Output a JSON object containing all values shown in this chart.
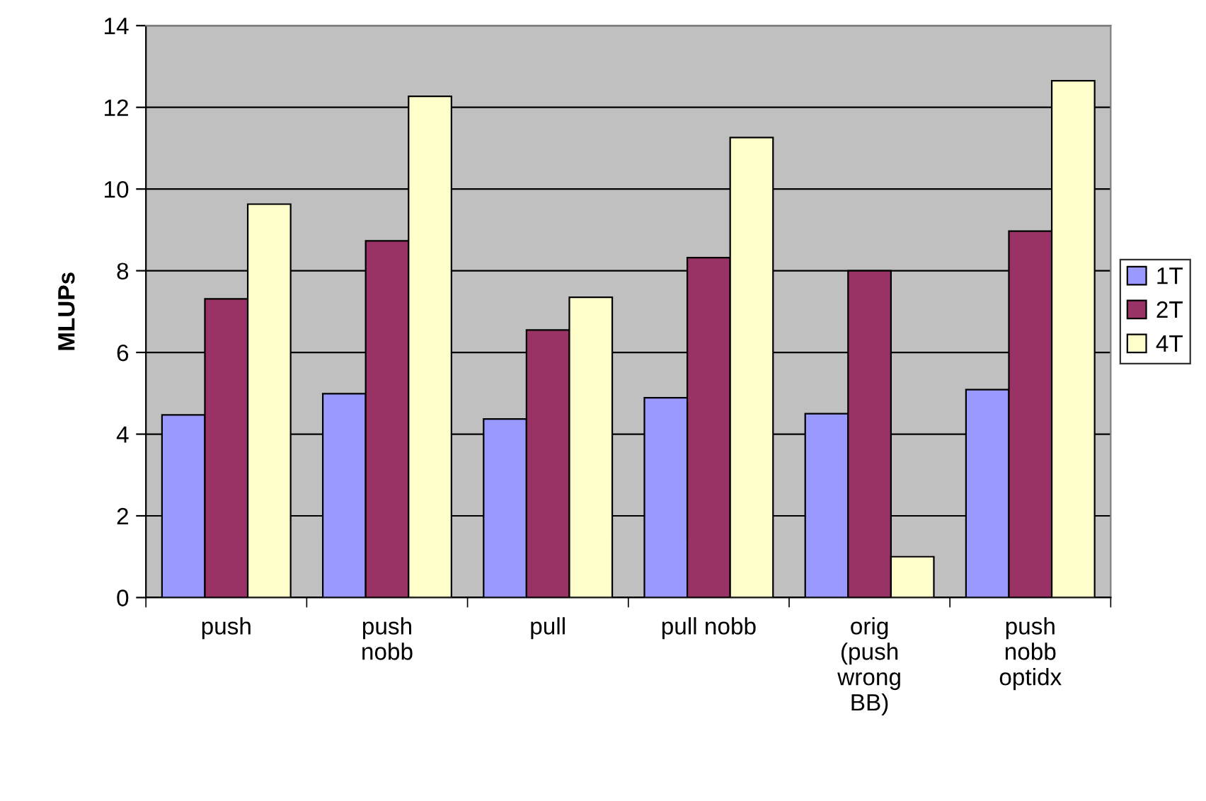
{
  "chart_data": {
    "type": "bar",
    "ylabel": "MLUPs",
    "categories": [
      "push",
      "push\nnobb",
      "pull",
      "pull nobb",
      "orig\n(push\nwrong\nBB)",
      "push\nnobb\noptidx"
    ],
    "series": [
      {
        "name": "1T",
        "color": "#9999ff",
        "values": [
          4.47,
          4.99,
          4.37,
          4.89,
          4.5,
          5.09
        ]
      },
      {
        "name": "2T",
        "color": "#993366",
        "values": [
          7.31,
          8.73,
          6.55,
          8.32,
          8.0,
          8.97
        ]
      },
      {
        "name": "4T",
        "color": "#ffffcc",
        "values": [
          9.63,
          12.27,
          7.35,
          11.26,
          1.0,
          12.65
        ]
      }
    ],
    "ylim": [
      0,
      14
    ],
    "yticks": [
      0,
      2,
      4,
      6,
      8,
      10,
      12,
      14
    ],
    "grid": "y",
    "legend": "right"
  }
}
